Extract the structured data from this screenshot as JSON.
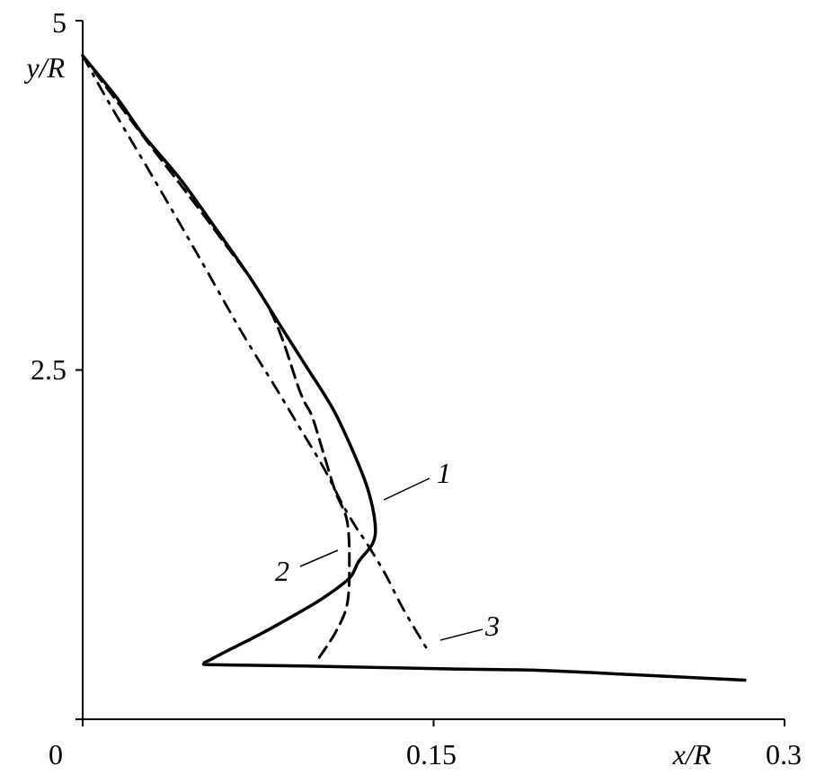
{
  "chart_data": {
    "type": "line",
    "xlabel": "x/R",
    "ylabel": "y/R",
    "xlim": [
      0,
      0.3
    ],
    "ylim": [
      0,
      5
    ],
    "x_ticks": [
      "0",
      "0.15",
      "0.3"
    ],
    "y_ticks": [
      "5",
      "2.5"
    ],
    "x_tick_values": [
      0,
      0.15,
      0.3
    ],
    "y_tick_values": [
      5,
      2.5,
      0
    ],
    "grid": false,
    "legend": "none",
    "series": [
      {
        "label": "1",
        "style": "solid",
        "color": "#000000",
        "x": [
          0,
          0.015,
          0.026,
          0.042,
          0.057,
          0.072,
          0.084,
          0.095,
          0.107,
          0.116,
          0.122,
          0.125,
          0.124,
          0.118,
          0.114,
          0.103,
          0.091,
          0.076,
          0.063,
          0.055,
          0.052,
          0.057,
          0.099,
          0.157,
          0.195,
          0.234,
          0.283
        ],
        "y": [
          4.75,
          4.44,
          4.18,
          3.86,
          3.51,
          3.15,
          2.83,
          2.54,
          2.22,
          1.9,
          1.64,
          1.4,
          1.26,
          1.13,
          1.01,
          0.87,
          0.75,
          0.61,
          0.5,
          0.43,
          0.4,
          0.39,
          0.38,
          0.36,
          0.35,
          0.32,
          0.28
        ]
      },
      {
        "label": "2",
        "style": "dashed",
        "color": "#000000",
        "x": [
          0,
          0.026,
          0.057,
          0.08,
          0.093,
          0.098,
          0.103,
          0.108,
          0.113,
          0.114,
          0.113,
          0.108,
          0.101
        ],
        "y": [
          4.75,
          4.17,
          3.49,
          2.93,
          2.34,
          2.17,
          1.9,
          1.63,
          1.42,
          1.11,
          0.82,
          0.62,
          0.44
        ]
      },
      {
        "label": "3",
        "style": "dash-dot",
        "color": "#000000",
        "x": [
          0,
          0.011,
          0.03,
          0.049,
          0.068,
          0.083,
          0.093,
          0.103,
          0.111,
          0.117,
          0.121,
          0.129,
          0.137,
          0.148
        ],
        "y": [
          4.75,
          4.42,
          3.88,
          3.33,
          2.77,
          2.36,
          2.08,
          1.8,
          1.54,
          1.37,
          1.27,
          1.05,
          0.79,
          0.48
        ]
      }
    ]
  }
}
